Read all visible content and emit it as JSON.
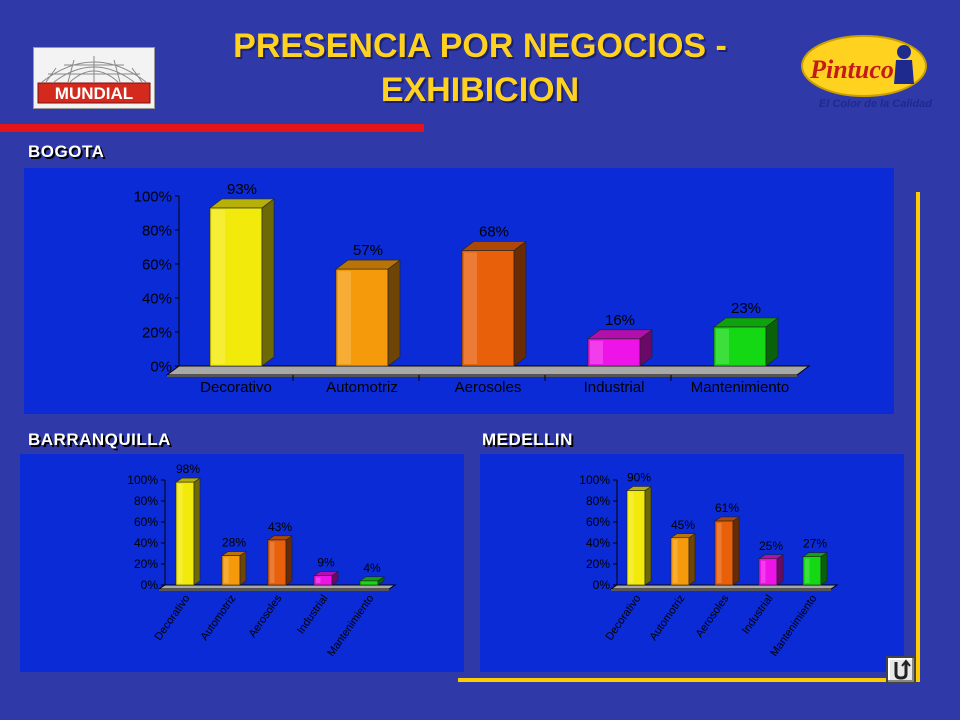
{
  "header": {
    "title_line1": "PRESENCIA POR NEGOCIOS -",
    "title_line2": "EXHIBICION",
    "logo_left_text": "MUNDIAL",
    "logo_right_text": "Pintuco",
    "slogan": "El Color de la Calidad"
  },
  "colors": {
    "background": "#2f3aa8",
    "panel": "#0b2bd6",
    "title": "#ffd21f",
    "accent_red": "#e5141b",
    "accent_gold": "#ffcc00",
    "categories": [
      "#f2ea0a",
      "#f59a0a",
      "#e8600a",
      "#ee14e8",
      "#14d814"
    ]
  },
  "nav": {
    "icon": "return-arrow-icon"
  },
  "chart_data": [
    {
      "type": "bar",
      "section_label": "BOGOTA",
      "categories": [
        "Decorativo",
        "Automotriz",
        "Aerosoles",
        "Industrial",
        "Mantenimiento"
      ],
      "values": [
        93,
        57,
        68,
        16,
        23
      ],
      "data_labels": [
        "93%",
        "57%",
        "68%",
        "16%",
        "23%"
      ],
      "y_ticks": [
        "0%",
        "20%",
        "40%",
        "60%",
        "80%",
        "100%"
      ],
      "ylim": [
        0,
        100
      ],
      "three_d": true,
      "grid": false
    },
    {
      "type": "bar",
      "section_label": "BARRANQUILLA",
      "categories": [
        "Decorativo",
        "Automotriz",
        "Aerosoles",
        "Industrial",
        "Mantenimiento"
      ],
      "values": [
        98,
        28,
        43,
        9,
        4
      ],
      "data_labels": [
        "98%",
        "28%",
        "43%",
        "9%",
        "4%"
      ],
      "y_ticks": [
        "0%",
        "20%",
        "40%",
        "60%",
        "80%",
        "100%"
      ],
      "ylim": [
        0,
        100
      ],
      "three_d": true,
      "rotated_category_labels": true,
      "grid": false
    },
    {
      "type": "bar",
      "section_label": "MEDELLIN",
      "categories": [
        "Decorativo",
        "Automotriz",
        "Aerosoles",
        "Industrial",
        "Mantenimiento"
      ],
      "values": [
        90,
        45,
        61,
        25,
        27
      ],
      "data_labels": [
        "90%",
        "45%",
        "61%",
        "25%",
        "27%"
      ],
      "y_ticks": [
        "0%",
        "20%",
        "40%",
        "60%",
        "80%",
        "100%"
      ],
      "ylim": [
        0,
        100
      ],
      "three_d": true,
      "rotated_category_labels": true,
      "grid": false
    }
  ]
}
